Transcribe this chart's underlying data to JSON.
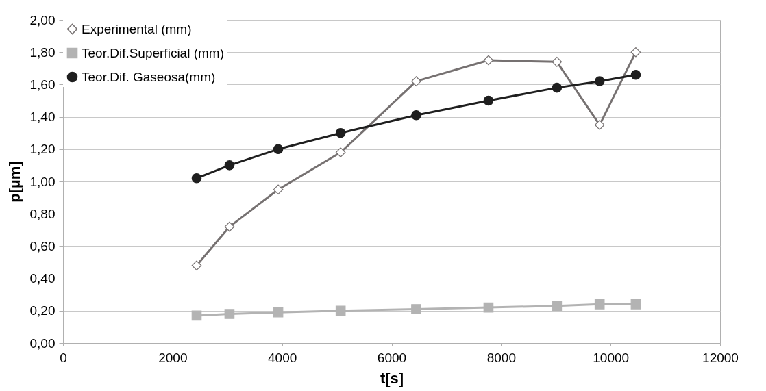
{
  "chart_data": {
    "type": "line",
    "xlabel": "t[s]",
    "ylabel": "p[µm]",
    "x": [
      2440,
      3040,
      3930,
      5070,
      6450,
      7770,
      9020,
      9800,
      10460
    ],
    "series": [
      {
        "name": "Experimental (mm)",
        "color": "#767171",
        "marker": "diamond",
        "values": [
          0.48,
          0.72,
          0.95,
          1.18,
          1.62,
          1.75,
          1.74,
          1.35,
          1.8
        ]
      },
      {
        "name": "Teor.Dif.Superficial (mm)",
        "color": "#b3b3b3",
        "marker": "square",
        "values": [
          0.17,
          0.18,
          0.19,
          0.2,
          0.21,
          0.22,
          0.23,
          0.24,
          0.24
        ]
      },
      {
        "name": "Teor.Dif. Gaseosa(mm)",
        "color": "#1f1f1f",
        "marker": "circle",
        "values": [
          1.02,
          1.1,
          1.2,
          1.3,
          1.41,
          1.5,
          1.58,
          1.62,
          1.66
        ]
      }
    ],
    "xlim": [
      0,
      12000
    ],
    "xticks": [
      0,
      2000,
      4000,
      6000,
      8000,
      10000,
      12000
    ],
    "ylim": [
      0,
      2.0
    ],
    "yticks": [
      {
        "value": 0,
        "label": "0,00"
      },
      {
        "value": 0.2,
        "label": "0,20"
      },
      {
        "value": 0.4,
        "label": "0,40"
      },
      {
        "value": 0.6,
        "label": "0,60"
      },
      {
        "value": 0.8,
        "label": "0,80"
      },
      {
        "value": 1.0,
        "label": "1,00"
      },
      {
        "value": 1.2,
        "label": "1,20"
      },
      {
        "value": 1.4,
        "label": "1,40"
      },
      {
        "value": 1.6,
        "label": "1,60"
      },
      {
        "value": 1.8,
        "label": "1,80"
      },
      {
        "value": 2.0,
        "label": "2,00"
      }
    ],
    "grid": "y",
    "legend": "top left",
    "line_style": "solid"
  }
}
